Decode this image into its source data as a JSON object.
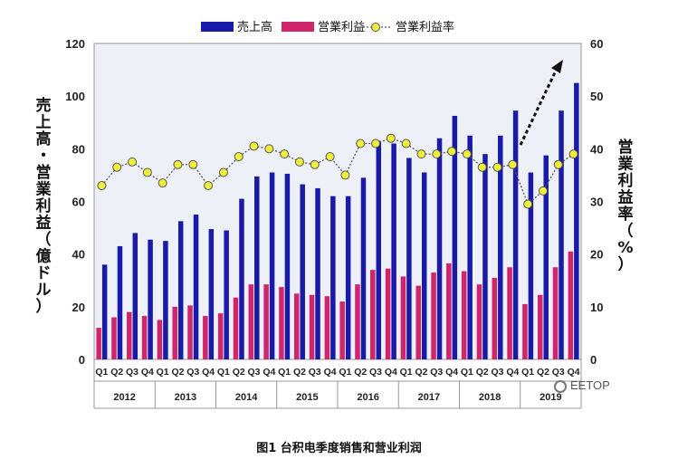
{
  "caption": "图1 台积电季度销售和营业利润",
  "watermark": "EETOP",
  "chart_data": {
    "type": "bar",
    "left_axis_label": "売上高・営業利益（億ドル）",
    "right_axis_label": "営業利益率（%）",
    "left_ylim": [
      0,
      120
    ],
    "right_ylim": [
      0,
      60
    ],
    "left_ticks": [
      "0",
      "20",
      "40",
      "60",
      "80",
      "100",
      "120"
    ],
    "right_ticks": [
      "0",
      "10",
      "20",
      "30",
      "40",
      "50",
      "60"
    ],
    "legend": [
      "売上高",
      "営業利益",
      "営業利益率"
    ],
    "legend_position": "top",
    "grid": false,
    "colors": {
      "revenue": "#1a1aa8",
      "profit": "#d0256a",
      "margin_line": "#555555",
      "margin_marker": "#f0f03a",
      "plot_bg": "#eef0f8",
      "arrow": "#111111"
    },
    "categories": [
      "Q1",
      "Q2",
      "Q3",
      "Q4",
      "Q1",
      "Q2",
      "Q3",
      "Q4",
      "Q1",
      "Q2",
      "Q3",
      "Q4",
      "Q1",
      "Q2",
      "Q3",
      "Q4",
      "Q1",
      "Q2",
      "Q3",
      "Q4",
      "Q1",
      "Q2",
      "Q3",
      "Q4",
      "Q1",
      "Q2",
      "Q3",
      "Q4",
      "Q1",
      "Q2",
      "Q3",
      "Q4"
    ],
    "years": [
      "2012",
      "2013",
      "2014",
      "2015",
      "2016",
      "2017",
      "2018",
      "2019"
    ],
    "series": [
      {
        "name": "売上高",
        "type": "bar",
        "axis": "left",
        "values": [
          36,
          43,
          48,
          45.5,
          45,
          52.5,
          55,
          49.5,
          49,
          61,
          69.5,
          71,
          70.5,
          66.5,
          65,
          62,
          62,
          69,
          83,
          82,
          76.5,
          71,
          84,
          92.5,
          85,
          78,
          85,
          94.5,
          71,
          77.5,
          94.5,
          105
        ]
      },
      {
        "name": "営業利益",
        "type": "bar",
        "axis": "left",
        "values": [
          12,
          16,
          18,
          16.5,
          15,
          20,
          20.5,
          16.5,
          17.5,
          23.5,
          28.5,
          28.5,
          27.5,
          25,
          24.5,
          24,
          22,
          28.5,
          34,
          34.5,
          31.5,
          28,
          33,
          36.5,
          33.5,
          28.5,
          31,
          35,
          21,
          24.5,
          35,
          41
        ]
      },
      {
        "name": "営業利益率",
        "type": "line",
        "axis": "right",
        "values": [
          33,
          36.5,
          37.5,
          35.5,
          33.5,
          37,
          37,
          33,
          35.5,
          38.5,
          40.5,
          40,
          39,
          37.5,
          37,
          38.5,
          35,
          41,
          41,
          42,
          41,
          39,
          39,
          39.5,
          39,
          36.5,
          36.5,
          37,
          29.5,
          32,
          37,
          39
        ]
      }
    ]
  }
}
